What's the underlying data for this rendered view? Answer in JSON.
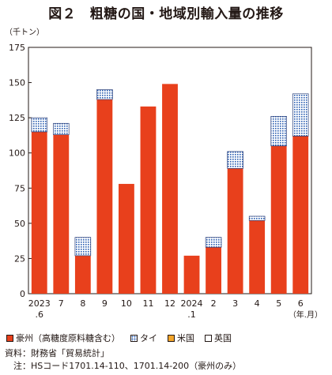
{
  "title": "図２　粗糖の国・地域別輸入量の推移",
  "unit_label": "（千トン）",
  "x_axis_unit": "（年.月）",
  "notes": {
    "source": "資料：財務省「貿易統計」",
    "note": "　注：HSコード1701.14-110、1701.14-200（豪州のみ）"
  },
  "colors": {
    "australia": "#e8401c",
    "thailand_fill": "#ffffff",
    "thailand_pattern": "#2a5db0",
    "usa": "#f4a62a",
    "uk": "#ffffff",
    "axis": "#231815"
  },
  "chart_data": {
    "type": "bar",
    "stacked": true,
    "categories": [
      "2023.6",
      "7",
      "8",
      "9",
      "10",
      "11",
      "12",
      "2024.1",
      "2",
      "3",
      "4",
      "5",
      "6"
    ],
    "tick_labels": [
      [
        "2023",
        ".6"
      ],
      [
        "7"
      ],
      [
        "8"
      ],
      [
        "9"
      ],
      [
        "10"
      ],
      [
        "11"
      ],
      [
        "12"
      ],
      [
        "2024",
        ".1"
      ],
      [
        "2"
      ],
      [
        "3"
      ],
      [
        "4"
      ],
      [
        "5"
      ],
      [
        "6"
      ]
    ],
    "series": [
      {
        "name": "豪州（高糖度原料糖含む）",
        "key": "australia",
        "values": [
          115,
          113,
          27,
          138,
          78,
          133,
          149,
          27,
          33,
          89,
          52,
          105,
          112
        ]
      },
      {
        "name": "タイ",
        "key": "thailand",
        "values": [
          10,
          8,
          13,
          7,
          0,
          0,
          0,
          0,
          7,
          12,
          3,
          21,
          30
        ]
      },
      {
        "name": "米国",
        "key": "usa",
        "values": [
          0,
          0,
          0,
          0,
          0,
          0,
          0,
          0,
          0,
          0,
          0,
          0,
          0
        ]
      },
      {
        "name": "英国",
        "key": "uk",
        "values": [
          0,
          0,
          0,
          0,
          0,
          0,
          0,
          0,
          0,
          0,
          0,
          0,
          0
        ]
      }
    ],
    "ylim": [
      0,
      175
    ],
    "yticks": [
      0,
      25,
      50,
      75,
      100,
      125,
      150,
      175
    ],
    "grid": false,
    "legend_position": "bottom"
  }
}
